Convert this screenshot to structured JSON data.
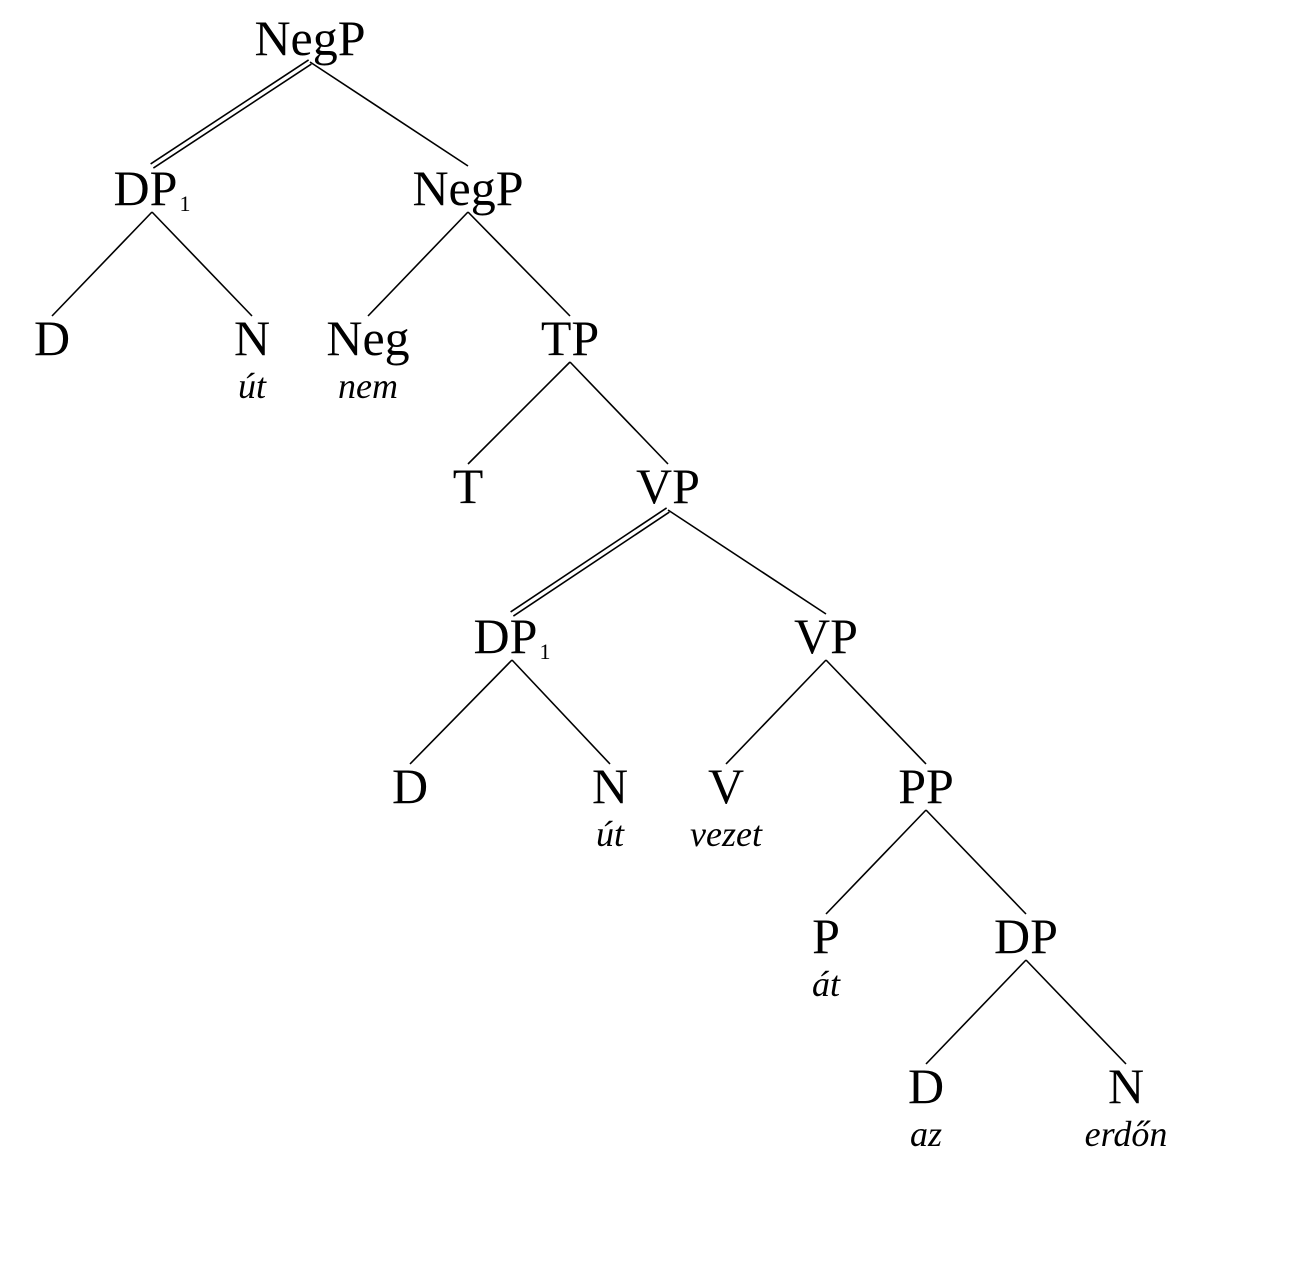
{
  "tree": {
    "nodes": [
      {
        "id": "negp-root",
        "label": "NegP"
      },
      {
        "id": "dp1-top",
        "label": "DP",
        "index": "1"
      },
      {
        "id": "negp-inner",
        "label": "NegP"
      },
      {
        "id": "d-top",
        "label": "D"
      },
      {
        "id": "n-top",
        "label": "N",
        "word": "út"
      },
      {
        "id": "neg",
        "label": "Neg",
        "word": "nem"
      },
      {
        "id": "tp",
        "label": "TP"
      },
      {
        "id": "t",
        "label": "T"
      },
      {
        "id": "vp-upper",
        "label": "VP"
      },
      {
        "id": "dp1-low",
        "label": "DP",
        "index": "1"
      },
      {
        "id": "vp-lower",
        "label": "VP"
      },
      {
        "id": "d-low",
        "label": "D"
      },
      {
        "id": "n-low",
        "label": "N",
        "word": "út"
      },
      {
        "id": "v",
        "label": "V",
        "word": "vezet"
      },
      {
        "id": "pp",
        "label": "PP"
      },
      {
        "id": "p",
        "label": "P",
        "word": "át"
      },
      {
        "id": "dp-obj",
        "label": "DP"
      },
      {
        "id": "d-obj",
        "label": "D",
        "word": "az"
      },
      {
        "id": "n-obj",
        "label": "N",
        "word": "erdőn"
      }
    ],
    "edges": [
      {
        "from": "negp-root",
        "to": "dp1-top",
        "style": "double"
      },
      {
        "from": "negp-root",
        "to": "negp-inner",
        "style": "single"
      },
      {
        "from": "dp1-top",
        "to": "d-top",
        "style": "single"
      },
      {
        "from": "dp1-top",
        "to": "n-top",
        "style": "single"
      },
      {
        "from": "negp-inner",
        "to": "neg",
        "style": "single"
      },
      {
        "from": "negp-inner",
        "to": "tp",
        "style": "single"
      },
      {
        "from": "tp",
        "to": "t",
        "style": "single"
      },
      {
        "from": "tp",
        "to": "vp-upper",
        "style": "single"
      },
      {
        "from": "vp-upper",
        "to": "dp1-low",
        "style": "double"
      },
      {
        "from": "vp-upper",
        "to": "vp-lower",
        "style": "single"
      },
      {
        "from": "dp1-low",
        "to": "d-low",
        "style": "single"
      },
      {
        "from": "dp1-low",
        "to": "n-low",
        "style": "single"
      },
      {
        "from": "vp-lower",
        "to": "v",
        "style": "single"
      },
      {
        "from": "vp-lower",
        "to": "pp",
        "style": "single"
      },
      {
        "from": "pp",
        "to": "p",
        "style": "single"
      },
      {
        "from": "pp",
        "to": "dp-obj",
        "style": "single"
      },
      {
        "from": "dp-obj",
        "to": "d-obj",
        "style": "single"
      },
      {
        "from": "dp-obj",
        "to": "n-obj",
        "style": "single"
      }
    ]
  }
}
